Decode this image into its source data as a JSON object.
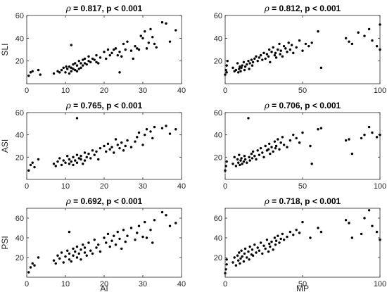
{
  "colors": {
    "background": "#ffffff",
    "axis": "#262626",
    "marker": "#000000"
  },
  "chart_data": [
    {
      "type": "scatter",
      "title": "ρ = 0.817, p < 0.001",
      "title_symbol": "ρ",
      "title_rest": " = 0.817, p < 0.001",
      "xlabel": "",
      "ylabel": "SLI",
      "xlim": [
        0,
        40
      ],
      "ylim": [
        0,
        60
      ],
      "xticks": [
        0,
        10,
        20,
        30,
        40
      ],
      "yticks": [
        20,
        40,
        60
      ],
      "x": [
        0.5,
        1,
        1.5,
        3,
        3.5,
        7,
        8,
        8.5,
        9,
        9.5,
        10,
        10.2,
        10.5,
        11,
        11,
        11.5,
        11.5,
        12,
        12,
        12.5,
        12.5,
        13,
        13,
        13.5,
        13.5,
        14,
        14,
        14.5,
        14.5,
        15,
        15,
        15.5,
        16,
        16,
        16.5,
        17,
        17.5,
        18,
        18,
        18.5,
        19,
        20,
        20.5,
        21,
        21.5,
        22,
        22.5,
        23,
        23.5,
        24,
        24.5,
        25,
        25.5,
        26,
        27,
        27.5,
        28,
        28.5,
        29,
        29.5,
        30,
        30.5,
        31,
        31.5,
        32,
        32.5,
        33,
        33.5,
        35,
        36,
        37,
        38.5,
        11.5,
        24
      ],
      "y": [
        7,
        10,
        11,
        12,
        8,
        9,
        11,
        10,
        12,
        14,
        10,
        15,
        13,
        9,
        15,
        14,
        11,
        17,
        13,
        12,
        18,
        11,
        16,
        13,
        20,
        14,
        18,
        16,
        21,
        18,
        22,
        17,
        20,
        24,
        19,
        22,
        21,
        19,
        25,
        18,
        23,
        28,
        22,
        30,
        25,
        27,
        30,
        31,
        25,
        28,
        24,
        35,
        30,
        37,
        29,
        22,
        33,
        31,
        30,
        42,
        40,
        46,
        31,
        36,
        48,
        41,
        35,
        32,
        54,
        53,
        37,
        47,
        34,
        10
      ],
      "series": [
        {
          "name": ""
        }
      ]
    },
    {
      "type": "scatter",
      "title": "ρ = 0.812, p < 0.001",
      "title_symbol": "ρ",
      "title_rest": " = 0.812, p < 0.001",
      "xlabel": "",
      "ylabel": "",
      "xlim": [
        0,
        100
      ],
      "ylim": [
        0,
        60
      ],
      "xticks": [
        0,
        50,
        100
      ],
      "yticks": [
        20,
        40,
        60
      ],
      "x": [
        0,
        0.5,
        1,
        1,
        1.5,
        5,
        6,
        7,
        8,
        8.5,
        9,
        9.5,
        10,
        10.5,
        11,
        12,
        12.5,
        13,
        14,
        15,
        15.5,
        16,
        17,
        17.5,
        18,
        19,
        20,
        21,
        22,
        23,
        24,
        25,
        26,
        27,
        28,
        28.5,
        29,
        30,
        31,
        32,
        32.5,
        33,
        34,
        35,
        35.5,
        36,
        37,
        38,
        39,
        40,
        41,
        42,
        43,
        44,
        46,
        48,
        50,
        52,
        54,
        56,
        60,
        62,
        78,
        80,
        82,
        86,
        90,
        93,
        95,
        98,
        100,
        100
      ],
      "y": [
        8,
        12,
        16,
        10,
        20,
        14,
        11,
        12,
        18,
        10,
        13,
        15,
        11,
        14,
        16,
        19,
        12,
        15,
        17,
        20,
        13,
        18,
        21,
        16,
        19,
        22,
        24,
        20,
        23,
        25,
        21,
        27,
        22,
        26,
        24,
        30,
        19,
        28,
        32,
        25,
        27,
        23,
        30,
        35,
        26,
        29,
        24,
        33,
        31,
        28,
        36,
        30,
        34,
        27,
        32,
        38,
        29,
        35,
        33,
        36,
        46,
        14,
        40,
        37,
        35,
        45,
        42,
        48,
        38,
        33,
        30,
        52
      ],
      "series": [
        {
          "name": ""
        }
      ]
    },
    {
      "type": "scatter",
      "title": "ρ = 0.765, p < 0.001",
      "title_symbol": "ρ",
      "title_rest": " = 0.765, p < 0.001",
      "xlabel": "",
      "ylabel": "ASI",
      "xlim": [
        0,
        40
      ],
      "ylim": [
        0,
        60
      ],
      "xticks": [
        0,
        10,
        20,
        30,
        40
      ],
      "yticks": [
        20,
        40,
        60
      ],
      "x": [
        0.5,
        1,
        1.5,
        2,
        3,
        7,
        7.5,
        8,
        8.5,
        9,
        9.5,
        10,
        10.5,
        11,
        11,
        11.5,
        12,
        12,
        12.5,
        13,
        13,
        13.5,
        14,
        14,
        14.5,
        15,
        15,
        15.5,
        16,
        16.5,
        17,
        17.5,
        18,
        18.5,
        19,
        20,
        20.5,
        21,
        21.5,
        22,
        22.5,
        23,
        23.5,
        24,
        24.5,
        25,
        25.5,
        26,
        27,
        28,
        28.5,
        29,
        30,
        30.5,
        31,
        32,
        32.5,
        33,
        35,
        36,
        37,
        38.5,
        13
      ],
      "y": [
        8,
        13,
        15,
        11,
        18,
        14,
        12,
        16,
        19,
        13,
        17,
        15,
        21,
        14,
        18,
        16,
        20,
        13,
        17,
        22,
        15,
        19,
        18,
        21,
        14,
        24,
        17,
        20,
        23,
        19,
        26,
        22,
        25,
        18,
        28,
        30,
        25,
        32,
        27,
        29,
        24,
        36,
        31,
        28,
        33,
        26,
        30,
        35,
        29,
        34,
        38,
        42,
        31,
        40,
        45,
        43,
        37,
        47,
        46,
        48,
        41,
        45,
        55
      ],
      "series": [
        {
          "name": ""
        }
      ]
    },
    {
      "type": "scatter",
      "title": "ρ = 0.706, p < 0.001",
      "title_symbol": "ρ",
      "title_rest": " = 0.706, p < 0.001",
      "xlabel": "",
      "ylabel": "",
      "xlim": [
        0,
        100
      ],
      "ylim": [
        0,
        60
      ],
      "xticks": [
        0,
        50,
        100
      ],
      "yticks": [
        20,
        40,
        60
      ],
      "x": [
        0,
        0.5,
        1,
        5,
        6,
        7,
        8,
        8.5,
        9,
        9.5,
        10,
        10.5,
        11,
        12,
        12.5,
        13,
        14,
        15,
        15.5,
        16,
        17,
        17.5,
        18,
        19,
        20,
        21,
        22,
        23,
        24,
        25,
        26,
        27,
        28,
        28.5,
        29,
        30,
        31,
        32,
        32.5,
        33,
        34,
        35,
        36,
        37,
        38,
        40,
        42,
        44,
        46,
        48,
        50,
        55,
        56,
        60,
        62,
        78,
        80,
        82,
        88,
        90,
        93,
        95,
        98,
        100
      ],
      "y": [
        8,
        12,
        16,
        14,
        20,
        12,
        18,
        15,
        22,
        13,
        17,
        19,
        14,
        16,
        21,
        18,
        15,
        55,
        20,
        17,
        23,
        19,
        25,
        21,
        18,
        26,
        22,
        28,
        24,
        20,
        30,
        26,
        27,
        32,
        23,
        29,
        25,
        34,
        28,
        30,
        36,
        27,
        33,
        38,
        31,
        29,
        35,
        40,
        37,
        33,
        42,
        30,
        14,
        45,
        46,
        35,
        36,
        23,
        37,
        40,
        47,
        42,
        38,
        40
      ],
      "series": [
        {
          "name": ""
        }
      ]
    },
    {
      "type": "scatter",
      "title": "ρ = 0.692, p < 0.001",
      "title_symbol": "ρ",
      "title_rest": " = 0.692, p < 0.001",
      "xlabel": "AI",
      "ylabel": "PSI",
      "xlim": [
        0,
        40
      ],
      "ylim": [
        0,
        70
      ],
      "xticks": [
        0,
        10,
        20,
        30,
        40
      ],
      "yticks": [
        20,
        40,
        60
      ],
      "x": [
        0.5,
        1,
        1.5,
        2,
        3,
        7,
        7.5,
        8,
        8.5,
        9,
        9.5,
        10,
        10.5,
        11,
        11,
        11.5,
        12,
        12,
        12.5,
        13,
        13,
        13.5,
        14,
        14,
        14.5,
        15,
        15,
        15.5,
        16,
        16.5,
        17,
        17.5,
        18,
        18.5,
        19,
        20,
        20.5,
        21,
        21.5,
        22,
        22.5,
        23,
        23.5,
        24,
        24.5,
        25,
        25.5,
        26,
        27,
        28,
        28.5,
        29,
        30,
        30.5,
        31,
        32,
        32.5,
        33,
        35,
        36,
        37,
        38.5,
        11
      ],
      "y": [
        5,
        10,
        14,
        12,
        20,
        17,
        14,
        22,
        19,
        25,
        15,
        21,
        27,
        18,
        24,
        16,
        29,
        22,
        26,
        20,
        31,
        24,
        28,
        18,
        33,
        25,
        30,
        22,
        35,
        27,
        24,
        38,
        30,
        33,
        26,
        40,
        35,
        44,
        31,
        37,
        42,
        33,
        46,
        39,
        29,
        48,
        36,
        42,
        50,
        38,
        45,
        52,
        41,
        56,
        40,
        48,
        35,
        58,
        66,
        63,
        52,
        55,
        46
      ],
      "series": [
        {
          "name": ""
        }
      ]
    },
    {
      "type": "scatter",
      "title": "ρ = 0.718, p < 0.001",
      "title_symbol": "ρ",
      "title_rest": " = 0.718, p < 0.001",
      "xlabel": "MP",
      "ylabel": "",
      "xlim": [
        0,
        100
      ],
      "ylim": [
        0,
        70
      ],
      "xticks": [
        0,
        50,
        100
      ],
      "yticks": [
        20,
        40,
        60
      ],
      "x": [
        0,
        0.5,
        1,
        1,
        5,
        6,
        7,
        8,
        8.5,
        9,
        9.5,
        10,
        10.5,
        11,
        12,
        12.5,
        13,
        14,
        15,
        15.5,
        16,
        17,
        17.5,
        18,
        19,
        20,
        21,
        22,
        23,
        24,
        25,
        26,
        27,
        28,
        28.5,
        29,
        30,
        31,
        32,
        32.5,
        33,
        34,
        35,
        36,
        37,
        38,
        40,
        42,
        44,
        46,
        48,
        50,
        55,
        60,
        62,
        78,
        80,
        82,
        88,
        90,
        93,
        95,
        98,
        100
      ],
      "y": [
        4,
        8,
        13,
        18,
        15,
        20,
        12,
        22,
        17,
        25,
        14,
        19,
        27,
        21,
        16,
        24,
        29,
        20,
        26,
        18,
        31,
        23,
        28,
        22,
        33,
        25,
        30,
        27,
        35,
        24,
        32,
        29,
        38,
        26,
        34,
        31,
        36,
        28,
        40,
        33,
        37,
        42,
        35,
        39,
        44,
        38,
        41,
        46,
        43,
        48,
        45,
        56,
        40,
        50,
        46,
        58,
        55,
        40,
        44,
        60,
        68,
        52,
        46,
        38
      ],
      "series": [
        {
          "name": ""
        }
      ]
    }
  ]
}
